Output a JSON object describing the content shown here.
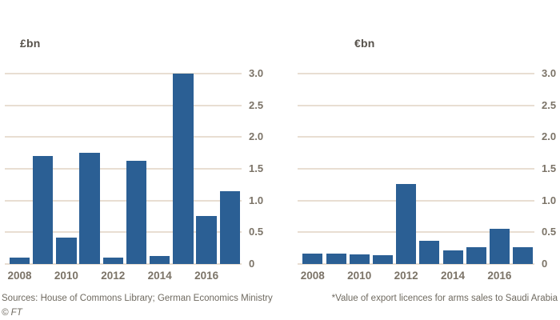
{
  "page": {
    "background_color": "#ffffff",
    "bar_color": "#2b5f94",
    "grid_color": "#e8ded2",
    "axis_text_color": "#7b7367"
  },
  "footer": {
    "sources": "Sources: House of Commons Library; German Economics Ministry",
    "copyright": "© FT",
    "footnote": "*Value of export licences for arms sales to Saudi Arabia"
  },
  "chart_data": [
    {
      "type": "bar",
      "title": "",
      "unit_label": "£bn",
      "categories": [
        "2008",
        "2009",
        "2010",
        "2011",
        "2012",
        "2013",
        "2014",
        "2015",
        "2016",
        "2017"
      ],
      "values": [
        0.1,
        1.7,
        0.42,
        1.75,
        0.1,
        1.63,
        0.13,
        3.0,
        0.76,
        1.15
      ],
      "x_tick_labels": [
        "2008",
        "2010",
        "2012",
        "2014",
        "2016"
      ],
      "y_ticks": [
        0,
        0.5,
        1.0,
        1.5,
        2.0,
        2.5,
        3.0
      ],
      "ylim": [
        0,
        3.0
      ],
      "ylabel": "£bn",
      "xlabel": "",
      "grid": true,
      "y_axis_side": "right",
      "legend": "none"
    },
    {
      "type": "bar",
      "title": "",
      "unit_label": "€bn",
      "categories": [
        "2008",
        "2009",
        "2010",
        "2011",
        "2012",
        "2013",
        "2014",
        "2015",
        "2016",
        "2017"
      ],
      "values": [
        0.16,
        0.16,
        0.15,
        0.14,
        1.26,
        0.36,
        0.22,
        0.27,
        0.55,
        0.26
      ],
      "x_tick_labels": [
        "2008",
        "2010",
        "2012",
        "2014",
        "2016"
      ],
      "y_ticks": [
        0,
        0.5,
        1.0,
        1.5,
        2.0,
        2.5,
        3.0
      ],
      "ylim": [
        0,
        3.0
      ],
      "ylabel": "€bn",
      "xlabel": "",
      "grid": true,
      "y_axis_side": "right",
      "legend": "none"
    }
  ]
}
